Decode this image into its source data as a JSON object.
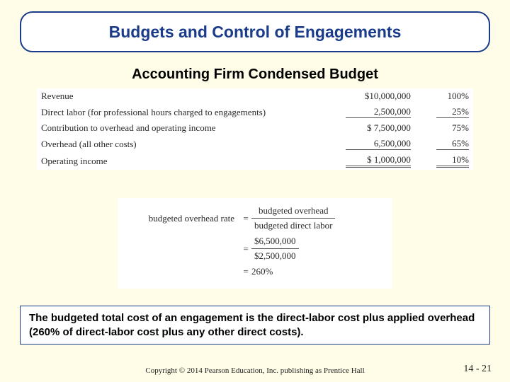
{
  "title": "Budgets and Control of Engagements",
  "subtitle": "Accounting Firm Condensed Budget",
  "budget": {
    "rows": [
      {
        "label": "Revenue",
        "amount": "$10,000,000",
        "pct": "100%"
      },
      {
        "label": "Direct labor (for professional hours charged to engagements)",
        "amount": "2,500,000",
        "pct": "25%"
      },
      {
        "label": "Contribution to overhead and operating income",
        "amount": "$ 7,500,000",
        "pct": "75%"
      },
      {
        "label": "Overhead (all other costs)",
        "amount": "6,500,000",
        "pct": "65%"
      },
      {
        "label": "Operating income",
        "amount": "$ 1,000,000",
        "pct": "10%"
      }
    ]
  },
  "formula": {
    "lhs": "budgeted overhead rate",
    "line1_num": "budgeted overhead",
    "line1_den": "budgeted direct labor",
    "line2_num": "$6,500,000",
    "line2_den": "$2,500,000",
    "line3": "260%"
  },
  "summary": "The budgeted total cost of an engagement is the direct-labor cost plus applied overhead (260% of direct-labor cost plus any other direct costs).",
  "copyright": "Copyright © 2014 Pearson Education, Inc. publishing as Prentice Hall",
  "pagenum": "14 - 21",
  "colors": {
    "bg": "#fffde8",
    "border": "#1a3a8a",
    "panel": "#ffffff"
  }
}
